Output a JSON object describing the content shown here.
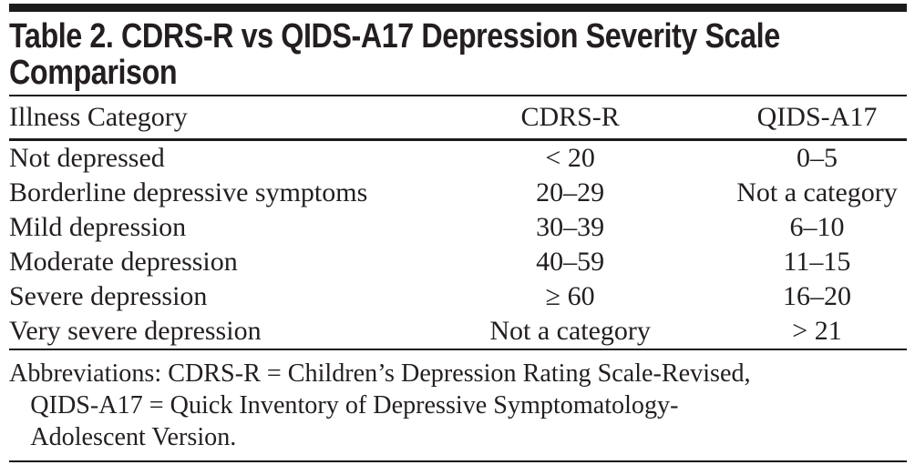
{
  "title": {
    "line1": "Table 2. CDRS-R vs QIDS-A17 Depression Severity Scale",
    "line2": "Comparison"
  },
  "table": {
    "columns": [
      "Illness Category",
      "CDRS-R",
      "QIDS-A17"
    ],
    "rows": [
      {
        "category": "Not depressed",
        "cdrs": "< 20",
        "qids": "0–5"
      },
      {
        "category": "Borderline depressive symptoms",
        "cdrs": "20–29",
        "qids": "Not a category"
      },
      {
        "category": "Mild depression",
        "cdrs": "30–39",
        "qids": "6–10"
      },
      {
        "category": "Moderate depression",
        "cdrs": "40–59",
        "qids": "11–15"
      },
      {
        "category": "Severe depression",
        "cdrs": "≥ 60",
        "qids": "16–20"
      },
      {
        "category": "Very severe depression",
        "cdrs": "Not a category",
        "qids": "> 21"
      }
    ]
  },
  "footnote": {
    "line1": "Abbreviations: CDRS-R = Children’s Depression Rating Scale-Revised,",
    "line2": "QIDS-A17 = Quick Inventory of Depressive Symptomatology-",
    "line3": "Adolescent Version."
  },
  "colors": {
    "ink": "#231f20",
    "rule": "#1b1b1d",
    "background": "#ffffff"
  }
}
